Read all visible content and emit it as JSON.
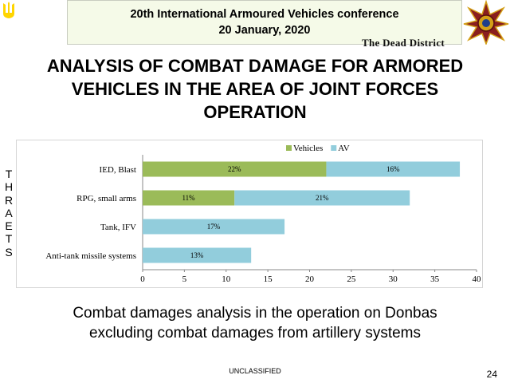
{
  "header": {
    "conference": "20th International Armoured Vehicles conference",
    "date": "20 January, 2020",
    "watermark": "The Dead District"
  },
  "title": {
    "line1": "ANALYSIS OF COMBAT DAMAGE FOR ARMORED",
    "line2": "VEHICLES IN THE AREA OF JOINT FORCES",
    "line3": "OPERATION"
  },
  "side_label": [
    "T",
    "H",
    "R",
    "A",
    "E",
    "T",
    "S"
  ],
  "colors": {
    "flag_blue": "#005bbb",
    "flag_yellow": "#ffd500",
    "vehicles": "#9bbb59",
    "av": "#92cddc"
  },
  "chart_data": {
    "type": "bar",
    "orientation": "horizontal",
    "stacked": true,
    "categories": [
      "IED, Blast",
      "RPG, small arms",
      "Tank, IFV",
      "Anti-tank missile systems"
    ],
    "series": [
      {
        "name": "Vehicles",
        "color": "#9bbb59",
        "values": [
          22,
          11,
          0,
          0
        ],
        "labels": [
          "22%",
          "11%",
          "",
          ""
        ]
      },
      {
        "name": "AV",
        "color": "#92cddc",
        "values": [
          16,
          21,
          17,
          13
        ],
        "labels": [
          "16%",
          "21%",
          "17%",
          "13%"
        ]
      }
    ],
    "xlim": [
      0,
      40
    ],
    "xticks": [
      0,
      5,
      10,
      15,
      20,
      25,
      30,
      35,
      40
    ],
    "legend_position": "top",
    "grid": false
  },
  "caption": {
    "line1": "Combat damages analysis in the operation on Donbas",
    "line2": "excluding combat damages from artillery systems"
  },
  "footer": {
    "classification": "UNCLASSIFIED",
    "page": "24"
  }
}
